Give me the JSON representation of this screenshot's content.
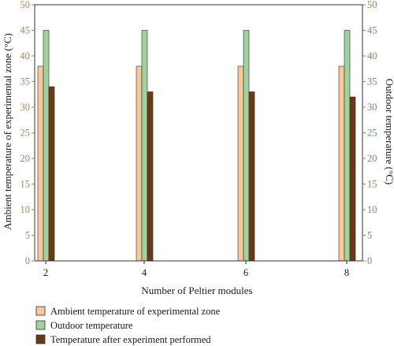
{
  "chart_data": {
    "type": "bar",
    "categories": [
      "2",
      "4",
      "6",
      "8"
    ],
    "series": [
      {
        "name": "Ambient temperature of experimental zone",
        "values": [
          38,
          38,
          38,
          38
        ],
        "axis": "left"
      },
      {
        "name": "Outdoor temperature",
        "values": [
          45,
          45,
          45,
          45
        ],
        "axis": "right"
      },
      {
        "name": "Temperature after experiment performed",
        "values": [
          34,
          33,
          33,
          32
        ],
        "axis": "left"
      }
    ],
    "xlabel": "Number of Peltier modules",
    "ylabel": "Ambient temperature of experimental zone (°C)",
    "ylabel_right": "Outdoor temperature (°C)",
    "ylim": [
      0,
      50
    ],
    "ylim_right": [
      0,
      50
    ],
    "yticks": [
      "0",
      "5",
      "10",
      "15",
      "20",
      "25",
      "30",
      "35",
      "40",
      "45",
      "50"
    ],
    "grid": false,
    "legend_position": "bottom",
    "colors": {
      "ambient": "#f7c89b",
      "outdoor": "#9fd39b",
      "after": "#6b3a14",
      "left_axis": "#b5835a",
      "right_axis": "#5e9e52",
      "frame": "#333333"
    }
  }
}
